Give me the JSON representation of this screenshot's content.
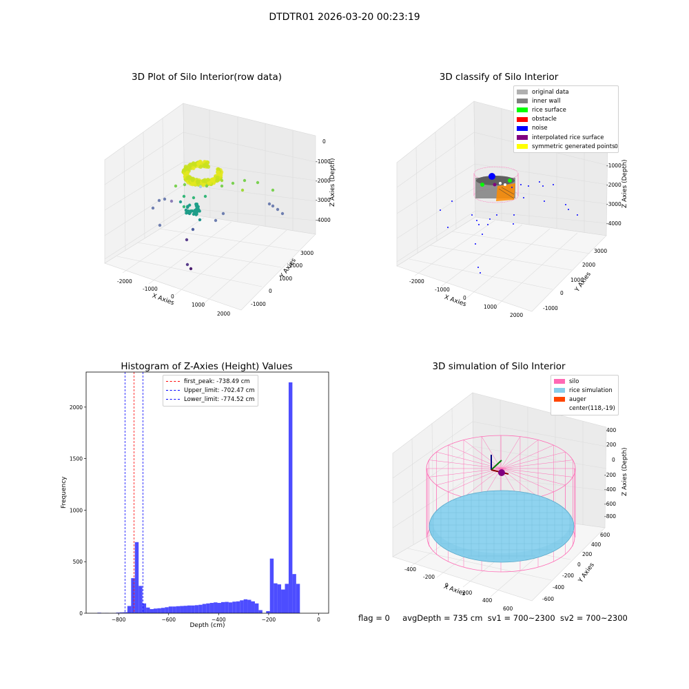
{
  "figure": {
    "suptitle": "DTDTR01 2026-03-20 00:23:19",
    "status": {
      "flag": "flag = 0",
      "avg_depth": "avgDepth = 735 cm",
      "sv1": "sv1 = 700~2300",
      "sv2": "sv2 = 700~2300"
    }
  },
  "panels": {
    "raw": {
      "title": "3D Plot of Silo Interior(row data)",
      "xlabel": "X Axies",
      "ylabel": "Y Axies",
      "zlabel": "Z Axies (Depth)",
      "x_ticks": [
        "-2000",
        "-1000",
        "0",
        "1000",
        "2000"
      ],
      "y_ticks": [
        "-1000",
        "0",
        "1000",
        "2000",
        "3000"
      ],
      "z_ticks": [
        "0",
        "-1000",
        "-2000",
        "-3000",
        "-4000"
      ]
    },
    "classify": {
      "title": "3D classify of Silo Interior",
      "xlabel": "X Axies",
      "ylabel": "Y Axies",
      "zlabel": "Z Axies (Depth)",
      "x_ticks": [
        "-2000",
        "-1000",
        "0",
        "1000",
        "2000"
      ],
      "y_ticks": [
        "-1000",
        "0",
        "1000",
        "2000",
        "3000"
      ],
      "z_ticks": [
        "0",
        "-1000",
        "-2000",
        "-3000",
        "-4000"
      ],
      "legend": [
        {
          "label": "original data",
          "color": "#b0b0b0"
        },
        {
          "label": "inner wall",
          "color": "#808080"
        },
        {
          "label": "rice surface",
          "color": "#00ff00"
        },
        {
          "label": "obstacle",
          "color": "#ff0000"
        },
        {
          "label": "noise",
          "color": "#0000ff"
        },
        {
          "label": "interpolated rice surface",
          "color": "#800080"
        },
        {
          "label": "symmetric generated points",
          "color": "#ffff00"
        }
      ]
    },
    "simulation": {
      "title": "3D simulation of Silo Interior",
      "xlabel": "X Axies",
      "ylabel": "Y Axies",
      "zlabel": "Z Axies (Depth)",
      "x_ticks": [
        "-400",
        "-200",
        "0",
        "200",
        "400",
        "600"
      ],
      "y_ticks": [
        "-600",
        "-400",
        "-200",
        "0",
        "200",
        "400",
        "600"
      ],
      "z_ticks": [
        "400",
        "200",
        "0",
        "-200",
        "-400",
        "-600",
        "-800"
      ],
      "legend": [
        {
          "label": "silo",
          "color": "#ff69b4"
        },
        {
          "label": "rice simulation",
          "color": "#87ceeb"
        },
        {
          "label": "auger",
          "color": "#ff4500"
        },
        {
          "label": "center(118,-19)",
          "color": ""
        }
      ]
    }
  },
  "chart_data": [
    {
      "type": "bar",
      "title": "Histogram of Z-Axies (Height) Values",
      "xlabel": "Depth (cm)",
      "ylabel": "Frequency",
      "xlim": [
        -930,
        40
      ],
      "ylim": [
        0,
        2340
      ],
      "x_ticks": [
        -800,
        -600,
        -400,
        -200,
        0
      ],
      "y_ticks": [
        0,
        500,
        1000,
        1500,
        2000
      ],
      "bin_width": 15,
      "bins_start": [
        -885,
        -870,
        -855,
        -840,
        -825,
        -810,
        -795,
        -780,
        -765,
        -750,
        -735,
        -720,
        -705,
        -690,
        -675,
        -660,
        -645,
        -630,
        -615,
        -600,
        -585,
        -570,
        -555,
        -540,
        -525,
        -510,
        -495,
        -480,
        -465,
        -450,
        -435,
        -420,
        -405,
        -390,
        -375,
        -360,
        -345,
        -330,
        -315,
        -300,
        -285,
        -270,
        -255,
        -240,
        -225,
        -210,
        -195,
        -180,
        -165,
        -150,
        -135,
        -120,
        -105,
        -90,
        -75,
        -60,
        -45,
        -30,
        -15
      ],
      "values": [
        5,
        2,
        3,
        1,
        2,
        6,
        8,
        10,
        70,
        340,
        690,
        265,
        95,
        55,
        40,
        45,
        48,
        52,
        58,
        65,
        65,
        68,
        70,
        72,
        75,
        75,
        78,
        82,
        90,
        95,
        100,
        105,
        100,
        108,
        110,
        105,
        112,
        115,
        125,
        135,
        130,
        115,
        95,
        30,
        0,
        20,
        530,
        290,
        280,
        230,
        285,
        2240,
        380,
        285,
        0,
        0,
        0,
        0,
        0
      ],
      "vlines": [
        {
          "x": -738.49,
          "label": "first_peak: -738.49 cm",
          "color": "#ff0000"
        },
        {
          "x": -702.47,
          "label": "Upper_limit: -702.47 cm",
          "color": "#0000ff"
        },
        {
          "x": -774.52,
          "label": "Lower_limit: -774.52 cm",
          "color": "#0000ff"
        }
      ],
      "legend_position": "upper center",
      "bar_color": "#4d4dff"
    }
  ]
}
